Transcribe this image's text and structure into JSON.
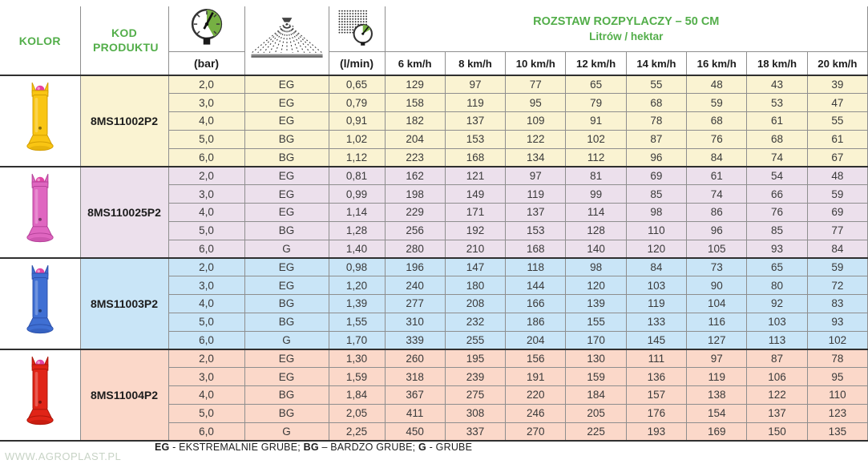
{
  "header": {
    "kolor_label": "KOLOR",
    "kod_label": "KOD PRODUKTU",
    "bar_unit": "(bar)",
    "flow_unit": "(l/min)",
    "span_title": "ROZSTAW ROZPYLACZY – 50 CM",
    "span_subtitle": "Litrów / hektar",
    "speed_headers": [
      "6 km/h",
      "8 km/h",
      "10 km/h",
      "12 km/h",
      "14 km/h",
      "16 km/h",
      "18 km/h",
      "20 km/h"
    ],
    "accent_green": "#53ae4a"
  },
  "legend": {
    "eg_code": "EG",
    "eg_desc": " - EKSTREMALNIE GRUBE; ",
    "bg_code": "BG",
    "bg_desc": " – BARDZO GRUBE; ",
    "g_code": "G",
    "g_desc": " - GRUBE"
  },
  "watermark": "WWW.AGROPLAST.PL",
  "groups": [
    {
      "code": "8MS11002P2",
      "color_name": "yellow",
      "row_bg": "#faf3d2",
      "nozzle_color": "#f9c513",
      "nozzle_dark": "#cf9a00",
      "tip_color": "#e8409e",
      "rows": [
        {
          "bar": "2,0",
          "droplet_class": "EG",
          "flow": "0,65",
          "liters": [
            "129",
            "97",
            "77",
            "65",
            "55",
            "48",
            "43",
            "39"
          ]
        },
        {
          "bar": "3,0",
          "droplet_class": "EG",
          "flow": "0,79",
          "liters": [
            "158",
            "119",
            "95",
            "79",
            "68",
            "59",
            "53",
            "47"
          ]
        },
        {
          "bar": "4,0",
          "droplet_class": "EG",
          "flow": "0,91",
          "liters": [
            "182",
            "137",
            "109",
            "91",
            "78",
            "68",
            "61",
            "55"
          ]
        },
        {
          "bar": "5,0",
          "droplet_class": "BG",
          "flow": "1,02",
          "liters": [
            "204",
            "153",
            "122",
            "102",
            "87",
            "76",
            "68",
            "61"
          ]
        },
        {
          "bar": "6,0",
          "droplet_class": "BG",
          "flow": "1,12",
          "liters": [
            "223",
            "168",
            "134",
            "112",
            "96",
            "84",
            "74",
            "67"
          ]
        }
      ]
    },
    {
      "code": "8MS110025P2",
      "color_name": "pink",
      "row_bg": "#ece0ec",
      "nozzle_color": "#df66c0",
      "nozzle_dark": "#b23f96",
      "tip_color": "#e045a5",
      "rows": [
        {
          "bar": "2,0",
          "droplet_class": "EG",
          "flow": "0,81",
          "liters": [
            "162",
            "121",
            "97",
            "81",
            "69",
            "61",
            "54",
            "48"
          ]
        },
        {
          "bar": "3,0",
          "droplet_class": "EG",
          "flow": "0,99",
          "liters": [
            "198",
            "149",
            "119",
            "99",
            "85",
            "74",
            "66",
            "59"
          ]
        },
        {
          "bar": "4,0",
          "droplet_class": "EG",
          "flow": "1,14",
          "liters": [
            "229",
            "171",
            "137",
            "114",
            "98",
            "86",
            "76",
            "69"
          ]
        },
        {
          "bar": "5,0",
          "droplet_class": "BG",
          "flow": "1,28",
          "liters": [
            "256",
            "192",
            "153",
            "128",
            "110",
            "96",
            "85",
            "77"
          ]
        },
        {
          "bar": "6,0",
          "droplet_class": "G",
          "flow": "1,40",
          "liters": [
            "280",
            "210",
            "168",
            "140",
            "120",
            "105",
            "93",
            "84"
          ]
        }
      ]
    },
    {
      "code": "8MS11003P2",
      "color_name": "blue",
      "row_bg": "#c9e5f7",
      "nozzle_color": "#3f6fd3",
      "nozzle_dark": "#2a4fa8",
      "tip_color": "#e045a5",
      "rows": [
        {
          "bar": "2,0",
          "droplet_class": "EG",
          "flow": "0,98",
          "liters": [
            "196",
            "147",
            "118",
            "98",
            "84",
            "73",
            "65",
            "59"
          ]
        },
        {
          "bar": "3,0",
          "droplet_class": "EG",
          "flow": "1,20",
          "liters": [
            "240",
            "180",
            "144",
            "120",
            "103",
            "90",
            "80",
            "72"
          ]
        },
        {
          "bar": "4,0",
          "droplet_class": "BG",
          "flow": "1,39",
          "liters": [
            "277",
            "208",
            "166",
            "139",
            "119",
            "104",
            "92",
            "83"
          ]
        },
        {
          "bar": "5,0",
          "droplet_class": "BG",
          "flow": "1,55",
          "liters": [
            "310",
            "232",
            "186",
            "155",
            "133",
            "116",
            "103",
            "93"
          ]
        },
        {
          "bar": "6,0",
          "droplet_class": "G",
          "flow": "1,70",
          "liters": [
            "339",
            "255",
            "204",
            "170",
            "145",
            "127",
            "113",
            "102"
          ]
        }
      ]
    },
    {
      "code": "8MS11004P2",
      "color_name": "red",
      "row_bg": "#fbd8c9",
      "nozzle_color": "#e02417",
      "nozzle_dark": "#a81408",
      "tip_color": "#e045a5",
      "rows": [
        {
          "bar": "2,0",
          "droplet_class": "EG",
          "flow": "1,30",
          "liters": [
            "260",
            "195",
            "156",
            "130",
            "111",
            "97",
            "87",
            "78"
          ]
        },
        {
          "bar": "3,0",
          "droplet_class": "EG",
          "flow": "1,59",
          "liters": [
            "318",
            "239",
            "191",
            "159",
            "136",
            "119",
            "106",
            "95"
          ]
        },
        {
          "bar": "4,0",
          "droplet_class": "BG",
          "flow": "1,84",
          "liters": [
            "367",
            "275",
            "220",
            "184",
            "157",
            "138",
            "122",
            "110"
          ]
        },
        {
          "bar": "5,0",
          "droplet_class": "BG",
          "flow": "2,05",
          "liters": [
            "411",
            "308",
            "246",
            "205",
            "176",
            "154",
            "137",
            "123"
          ]
        },
        {
          "bar": "6,0",
          "droplet_class": "G",
          "flow": "2,25",
          "liters": [
            "450",
            "337",
            "270",
            "225",
            "193",
            "169",
            "150",
            "135"
          ]
        }
      ]
    }
  ]
}
